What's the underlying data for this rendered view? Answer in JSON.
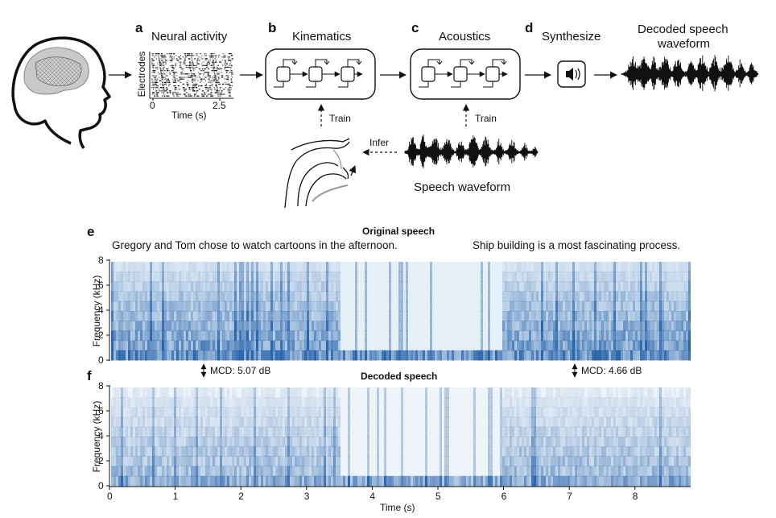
{
  "panels": {
    "a": {
      "letter": "a",
      "title": "Neural activity",
      "ylabel": "Electrodes",
      "xlabel": "Time (s)",
      "ticks": [
        "0",
        "2.5"
      ]
    },
    "b": {
      "letter": "b",
      "title": "Kinematics",
      "train": "Train"
    },
    "c": {
      "letter": "c",
      "title": "Acoustics",
      "train": "Train"
    },
    "d": {
      "letter": "d",
      "title": "Synthesize"
    },
    "decoded_title": [
      "Decoded speech",
      "waveform"
    ],
    "infer": "Infer",
    "speech_waveform": "Speech waveform"
  },
  "spectrograms": {
    "e": {
      "letter": "e",
      "title": "Original speech",
      "sentence_left": "Gregory and Tom chose to watch cartoons in the afternoon.",
      "sentence_right": "Ship building is a most fascinating process."
    },
    "f": {
      "letter": "f",
      "title": "Decoded speech"
    },
    "mcd_left": "MCD: 5.07 dB",
    "mcd_right": "MCD: 4.66 dB",
    "ylabel": "Frequency (kHz)",
    "yticks": [
      "0",
      "2",
      "4",
      "6",
      "8"
    ],
    "xticks": [
      "0",
      "1",
      "2",
      "3",
      "4",
      "5",
      "6",
      "7",
      "8"
    ],
    "xlabel": "Time (s)"
  },
  "colors": {
    "spectro_dark": "#1f5ea8",
    "spectro_light": "#e6f0f8",
    "ink": "#111111"
  },
  "icons": {
    "speaker": "speaker-icon",
    "brain": "brain-icon",
    "vocal_tract": "vocal-tract-icon"
  }
}
